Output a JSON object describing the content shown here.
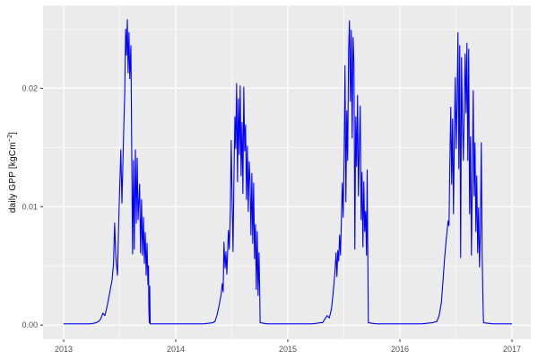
{
  "figure": {
    "background": "#FFFFFF",
    "panel_background": "#EBEBEB",
    "gridline_color": "#FFFFFF",
    "tick_mark_color": "#333333",
    "tick_label_color": "#4D4D4D",
    "axis_title_color": "#000000"
  },
  "y_axis": {
    "title_text": "daily GPP [kgCm^-2]",
    "title_prefix": "daily GPP [kgCm",
    "title_superscript": "−2",
    "title_suffix": "]",
    "tick_labels": [
      "0.00",
      "0.01",
      "0.02"
    ]
  },
  "x_axis": {
    "tick_labels": [
      "2013",
      "2014",
      "2015",
      "2016",
      "2017"
    ]
  },
  "chart_data": {
    "type": "line",
    "title": "",
    "xlabel": "",
    "ylabel": "daily GPP [kgCm^-2]",
    "legend": "none",
    "grid": true,
    "xlim": [
      2012.816,
      2017.168
    ],
    "ylim": [
      -0.0012,
      0.027
    ],
    "x_ticks": [
      2013,
      2014,
      2015,
      2016,
      2017
    ],
    "x_minor_ticks": [
      2013.5,
      2014.5,
      2015.5,
      2016.5
    ],
    "y_ticks": [
      0,
      0.01,
      0.02
    ],
    "y_tick_labels": [
      "0.00",
      "0.01",
      "0.02"
    ],
    "y_minor_ticks": [
      0.005,
      0.015,
      0.025
    ],
    "series": [
      {
        "name": "daily GPP",
        "color": "#0000FF",
        "points": [
          [
            2013.0,
            0.0001
          ],
          [
            2013.08,
            0.0001
          ],
          [
            2013.16,
            0.0001
          ],
          [
            2013.24,
            0.0001
          ],
          [
            2013.29,
            0.0002
          ],
          [
            2013.31,
            0.0003
          ],
          [
            2013.33,
            0.0005
          ],
          [
            2013.35,
            0.001
          ],
          [
            2013.368,
            0.0008
          ],
          [
            2013.388,
            0.0016
          ],
          [
            2013.4,
            0.0022
          ],
          [
            2013.416,
            0.003
          ],
          [
            2013.432,
            0.0038
          ],
          [
            2013.445,
            0.0052
          ],
          [
            2013.455,
            0.0086
          ],
          [
            2013.465,
            0.0058
          ],
          [
            2013.48,
            0.0042
          ],
          [
            2013.495,
            0.01
          ],
          [
            2013.51,
            0.0148
          ],
          [
            2013.52,
            0.0103
          ],
          [
            2013.535,
            0.0162
          ],
          [
            2013.545,
            0.0196
          ],
          [
            2013.553,
            0.025
          ],
          [
            2013.56,
            0.0228
          ],
          [
            2013.568,
            0.0258
          ],
          [
            2013.575,
            0.0213
          ],
          [
            2013.583,
            0.0247
          ],
          [
            2013.59,
            0.0208
          ],
          [
            2013.6,
            0.0236
          ],
          [
            2013.607,
            0.0152
          ],
          [
            2013.615,
            0.006
          ],
          [
            2013.623,
            0.0139
          ],
          [
            2013.63,
            0.0064
          ],
          [
            2013.64,
            0.0148
          ],
          [
            2013.648,
            0.0086
          ],
          [
            2013.656,
            0.0141
          ],
          [
            2013.664,
            0.0089
          ],
          [
            2013.678,
            0.0119
          ],
          [
            2013.686,
            0.0061
          ],
          [
            2013.695,
            0.0106
          ],
          [
            2013.703,
            0.0059
          ],
          [
            2013.712,
            0.0091
          ],
          [
            2013.72,
            0.0052
          ],
          [
            2013.728,
            0.0078
          ],
          [
            2013.736,
            0.0042
          ],
          [
            2013.744,
            0.0069
          ],
          [
            2013.752,
            0.0034
          ],
          [
            2013.757,
            0.005
          ],
          [
            2013.76,
            0.0015
          ],
          [
            2013.764,
            0.0002
          ],
          [
            2013.768,
            0.0033
          ],
          [
            2013.772,
            0.0001
          ],
          [
            2013.85,
            0.0001
          ],
          [
            2013.95,
            0.0001
          ],
          [
            2014.05,
            0.0001
          ],
          [
            2014.15,
            0.0001
          ],
          [
            2014.25,
            0.0001
          ],
          [
            2014.33,
            0.0002
          ],
          [
            2014.35,
            0.0003
          ],
          [
            2014.37,
            0.0009
          ],
          [
            2014.39,
            0.0018
          ],
          [
            2014.405,
            0.0026
          ],
          [
            2014.415,
            0.0035
          ],
          [
            2014.423,
            0.0028
          ],
          [
            2014.43,
            0.007
          ],
          [
            2014.44,
            0.0048
          ],
          [
            2014.448,
            0.0062
          ],
          [
            2014.456,
            0.0043
          ],
          [
            2014.47,
            0.008
          ],
          [
            2014.478,
            0.0064
          ],
          [
            2014.487,
            0.0098
          ],
          [
            2014.495,
            0.0156
          ],
          [
            2014.503,
            0.0104
          ],
          [
            2014.511,
            0.0062
          ],
          [
            2014.52,
            0.013
          ],
          [
            2014.528,
            0.0176
          ],
          [
            2014.535,
            0.0149
          ],
          [
            2014.543,
            0.0204
          ],
          [
            2014.551,
            0.0121
          ],
          [
            2014.559,
            0.0191
          ],
          [
            2014.567,
            0.0144
          ],
          [
            2014.575,
            0.0202
          ],
          [
            2014.583,
            0.0126
          ],
          [
            2014.591,
            0.0171
          ],
          [
            2014.599,
            0.0111
          ],
          [
            2014.607,
            0.0201
          ],
          [
            2014.615,
            0.0147
          ],
          [
            2014.623,
            0.0169
          ],
          [
            2014.631,
            0.0106
          ],
          [
            2014.639,
            0.0151
          ],
          [
            2014.647,
            0.0096
          ],
          [
            2014.655,
            0.0138
          ],
          [
            2014.663,
            0.0121
          ],
          [
            2014.671,
            0.0076
          ],
          [
            2014.679,
            0.0128
          ],
          [
            2014.687,
            0.0069
          ],
          [
            2014.695,
            0.012
          ],
          [
            2014.703,
            0.0056
          ],
          [
            2014.711,
            0.0085
          ],
          [
            2014.719,
            0.003
          ],
          [
            2014.727,
            0.0079
          ],
          [
            2014.735,
            0.0025
          ],
          [
            2014.743,
            0.0061
          ],
          [
            2014.749,
            0.003
          ],
          [
            2014.753,
            0.0002
          ],
          [
            2014.82,
            0.0001
          ],
          [
            2014.92,
            0.0001
          ],
          [
            2015.02,
            0.0001
          ],
          [
            2015.12,
            0.0001
          ],
          [
            2015.22,
            0.0001
          ],
          [
            2015.29,
            0.0002
          ],
          [
            2015.31,
            0.0002
          ],
          [
            2015.33,
            0.0005
          ],
          [
            2015.35,
            0.0008
          ],
          [
            2015.37,
            0.0006
          ],
          [
            2015.39,
            0.0014
          ],
          [
            2015.405,
            0.0028
          ],
          [
            2015.42,
            0.0044
          ],
          [
            2015.43,
            0.0061
          ],
          [
            2015.438,
            0.0041
          ],
          [
            2015.446,
            0.0063
          ],
          [
            2015.454,
            0.0054
          ],
          [
            2015.462,
            0.0076
          ],
          [
            2015.47,
            0.0059
          ],
          [
            2015.486,
            0.012
          ],
          [
            2015.494,
            0.0091
          ],
          [
            2015.502,
            0.014
          ],
          [
            2015.51,
            0.0219
          ],
          [
            2015.518,
            0.0104
          ],
          [
            2015.526,
            0.0181
          ],
          [
            2015.534,
            0.0139
          ],
          [
            2015.542,
            0.0231
          ],
          [
            2015.55,
            0.0257
          ],
          [
            2015.558,
            0.0189
          ],
          [
            2015.566,
            0.0249
          ],
          [
            2015.574,
            0.0158
          ],
          [
            2015.582,
            0.0243
          ],
          [
            2015.59,
            0.0221
          ],
          [
            2015.598,
            0.0064
          ],
          [
            2015.606,
            0.0176
          ],
          [
            2015.614,
            0.0134
          ],
          [
            2015.622,
            0.0194
          ],
          [
            2015.63,
            0.0109
          ],
          [
            2015.638,
            0.0151
          ],
          [
            2015.646,
            0.0185
          ],
          [
            2015.654,
            0.0089
          ],
          [
            2015.662,
            0.0129
          ],
          [
            2015.67,
            0.0066
          ],
          [
            2015.678,
            0.0121
          ],
          [
            2015.686,
            0.0079
          ],
          [
            2015.694,
            0.0096
          ],
          [
            2015.702,
            0.0059
          ],
          [
            2015.708,
            0.0131
          ],
          [
            2015.714,
            0.0054
          ],
          [
            2015.718,
            0.0002
          ],
          [
            2015.79,
            0.0001
          ],
          [
            2015.89,
            0.0001
          ],
          [
            2015.99,
            0.0001
          ],
          [
            2016.09,
            0.0001
          ],
          [
            2016.19,
            0.0001
          ],
          [
            2016.29,
            0.0002
          ],
          [
            2016.33,
            0.0003
          ],
          [
            2016.35,
            0.0008
          ],
          [
            2016.37,
            0.0019
          ],
          [
            2016.385,
            0.0038
          ],
          [
            2016.4,
            0.0058
          ],
          [
            2016.415,
            0.0074
          ],
          [
            2016.43,
            0.0088
          ],
          [
            2016.438,
            0.0084
          ],
          [
            2016.446,
            0.0139
          ],
          [
            2016.454,
            0.0184
          ],
          [
            2016.462,
            0.0119
          ],
          [
            2016.47,
            0.0174
          ],
          [
            2016.478,
            0.0094
          ],
          [
            2016.486,
            0.0161
          ],
          [
            2016.494,
            0.0209
          ],
          [
            2016.502,
            0.0149
          ],
          [
            2016.51,
            0.0191
          ],
          [
            2016.518,
            0.0247
          ],
          [
            2016.526,
            0.0132
          ],
          [
            2016.534,
            0.0236
          ],
          [
            2016.542,
            0.0057
          ],
          [
            2016.55,
            0.0226
          ],
          [
            2016.558,
            0.0171
          ],
          [
            2016.566,
            0.0139
          ],
          [
            2016.582,
            0.0229
          ],
          [
            2016.59,
            0.0179
          ],
          [
            2016.598,
            0.0238
          ],
          [
            2016.606,
            0.0139
          ],
          [
            2016.614,
            0.0233
          ],
          [
            2016.622,
            0.0094
          ],
          [
            2016.63,
            0.0159
          ],
          [
            2016.638,
            0.0059
          ],
          [
            2016.646,
            0.0124
          ],
          [
            2016.654,
            0.0198
          ],
          [
            2016.662,
            0.0109
          ],
          [
            2016.67,
            0.0154
          ],
          [
            2016.678,
            0.0079
          ],
          [
            2016.686,
            0.0126
          ],
          [
            2016.694,
            0.0061
          ],
          [
            2016.702,
            0.0099
          ],
          [
            2016.71,
            0.0049
          ],
          [
            2016.718,
            0.0079
          ],
          [
            2016.726,
            0.0154
          ],
          [
            2016.734,
            0.0059
          ],
          [
            2016.742,
            0.0015
          ],
          [
            2016.746,
            0.0002
          ],
          [
            2016.83,
            0.0001
          ],
          [
            2016.91,
            0.0001
          ],
          [
            2017.0,
            0.0001
          ]
        ]
      }
    ]
  }
}
